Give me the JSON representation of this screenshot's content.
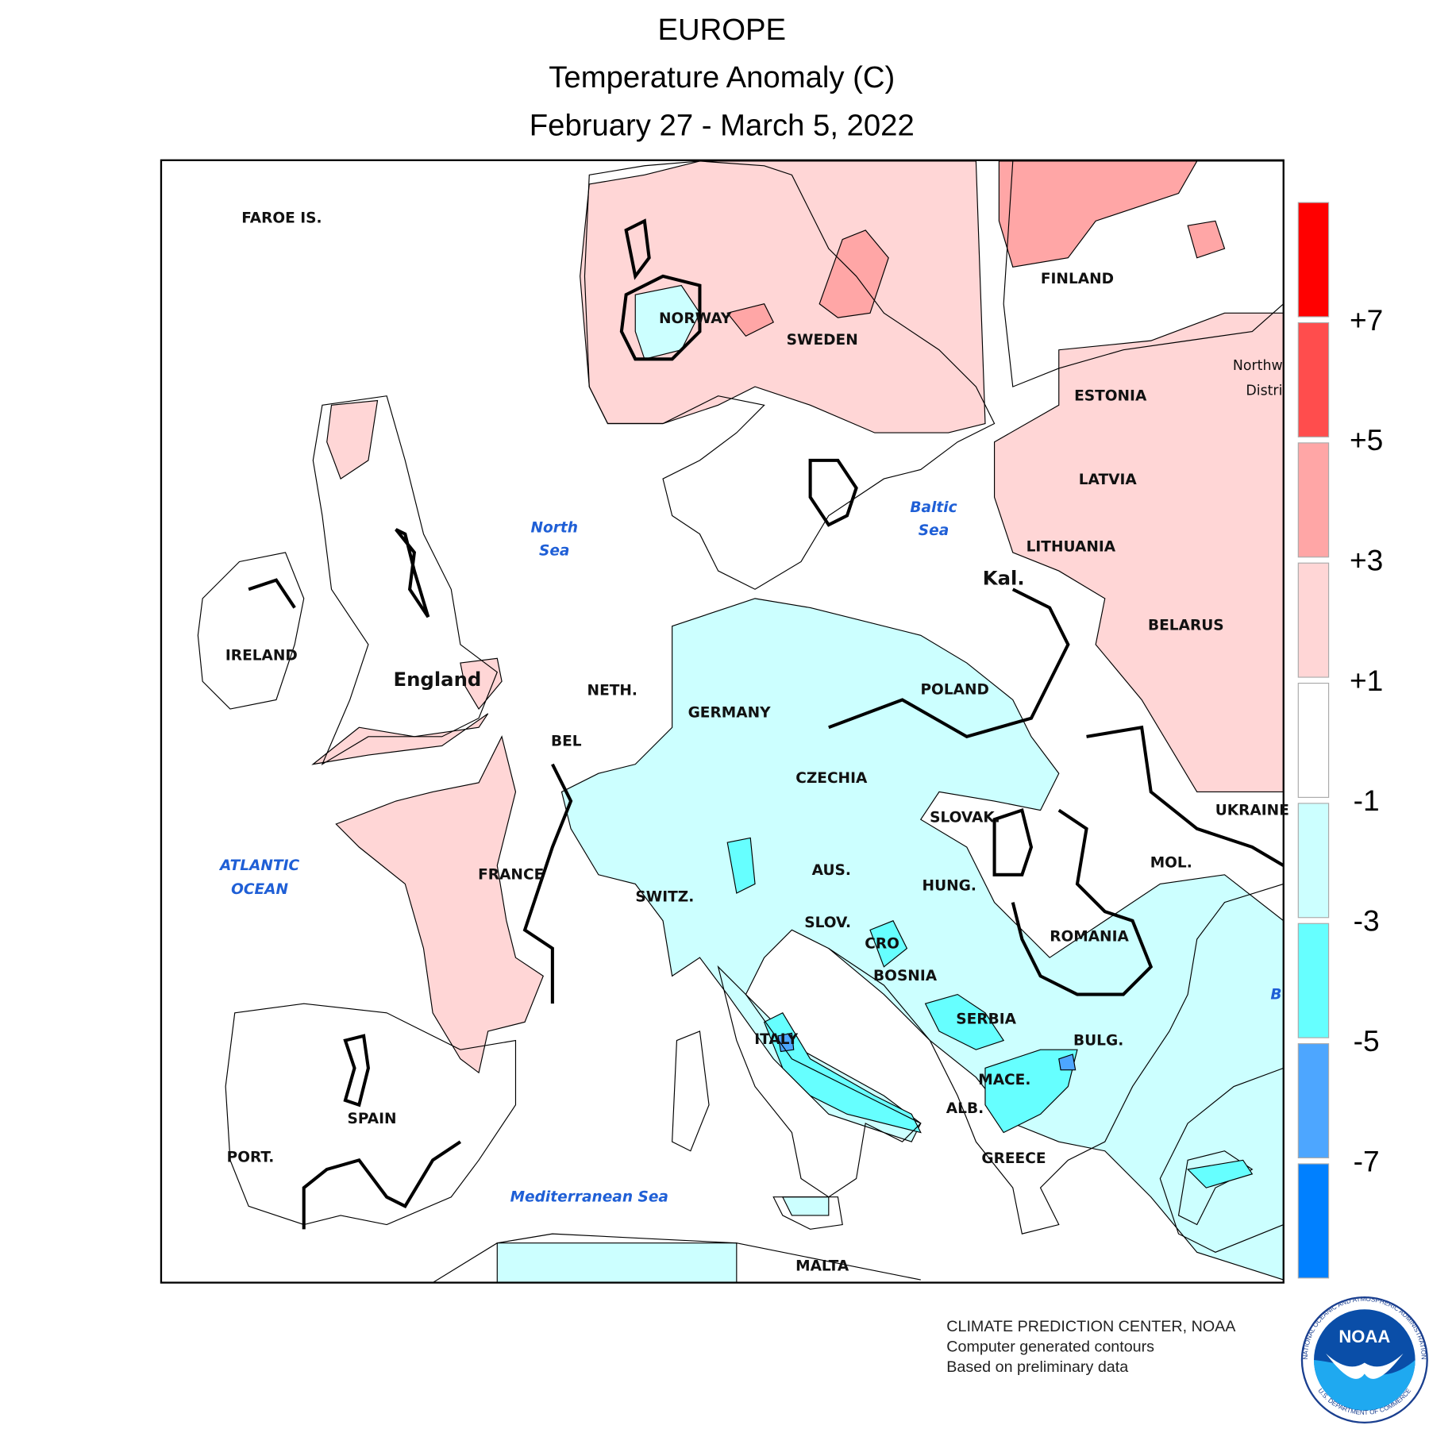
{
  "header": {
    "title": "EUROPE",
    "subtitle": "Temperature Anomaly (C)",
    "period": "February 27 - March 5, 2022"
  },
  "map": {
    "countries": [
      "FAROE IS.",
      "NORWAY",
      "SWEDEN",
      "FINLAND",
      "ESTONIA",
      "LATVIA",
      "LITHUANIA",
      "BELARUS",
      "Kal.",
      "POLAND",
      "IRELAND",
      "England",
      "NETH.",
      "GERMANY",
      "BEL",
      "CZECHIA",
      "SLOVAK.",
      "UKRAINE",
      "MOL.",
      "FRANCE",
      "AUS.",
      "HUNG.",
      "SWITZ.",
      "SLOV.",
      "CRO",
      "ROMANIA",
      "BOSNIA",
      "SERBIA",
      "ITALY",
      "BULG.",
      "MACE.",
      "ALB.",
      "SPAIN",
      "PORT.",
      "GREECE",
      "MALTA",
      "Northw",
      "Distri"
    ],
    "seas": [
      "North",
      "Sea",
      "Baltic",
      "Sea",
      "ATLANTIC",
      "OCEAN",
      "Mediterranean Sea",
      "B"
    ]
  },
  "legend": {
    "colors": [
      "#ff0000",
      "#ff4d4d",
      "#ffa6a6",
      "#ffd6d6",
      "#ffffff",
      "#ccffff",
      "#66ffff",
      "#4da6ff",
      "#0080ff"
    ],
    "ticks": [
      "+7",
      "+5",
      "+3",
      "+1",
      "-1",
      "-3",
      "-5",
      "-7"
    ]
  },
  "footer": {
    "lines": [
      "CLIMATE PREDICTION CENTER, NOAA",
      "Computer generated contours",
      "Based on preliminary data"
    ],
    "logo": {
      "text": "NOAA",
      "ring_top": "NATIONAL OCEANIC AND ATMOSPHERIC ADMINISTRATION",
      "ring_bottom": "U.S. DEPARTMENT OF COMMERCE"
    }
  }
}
